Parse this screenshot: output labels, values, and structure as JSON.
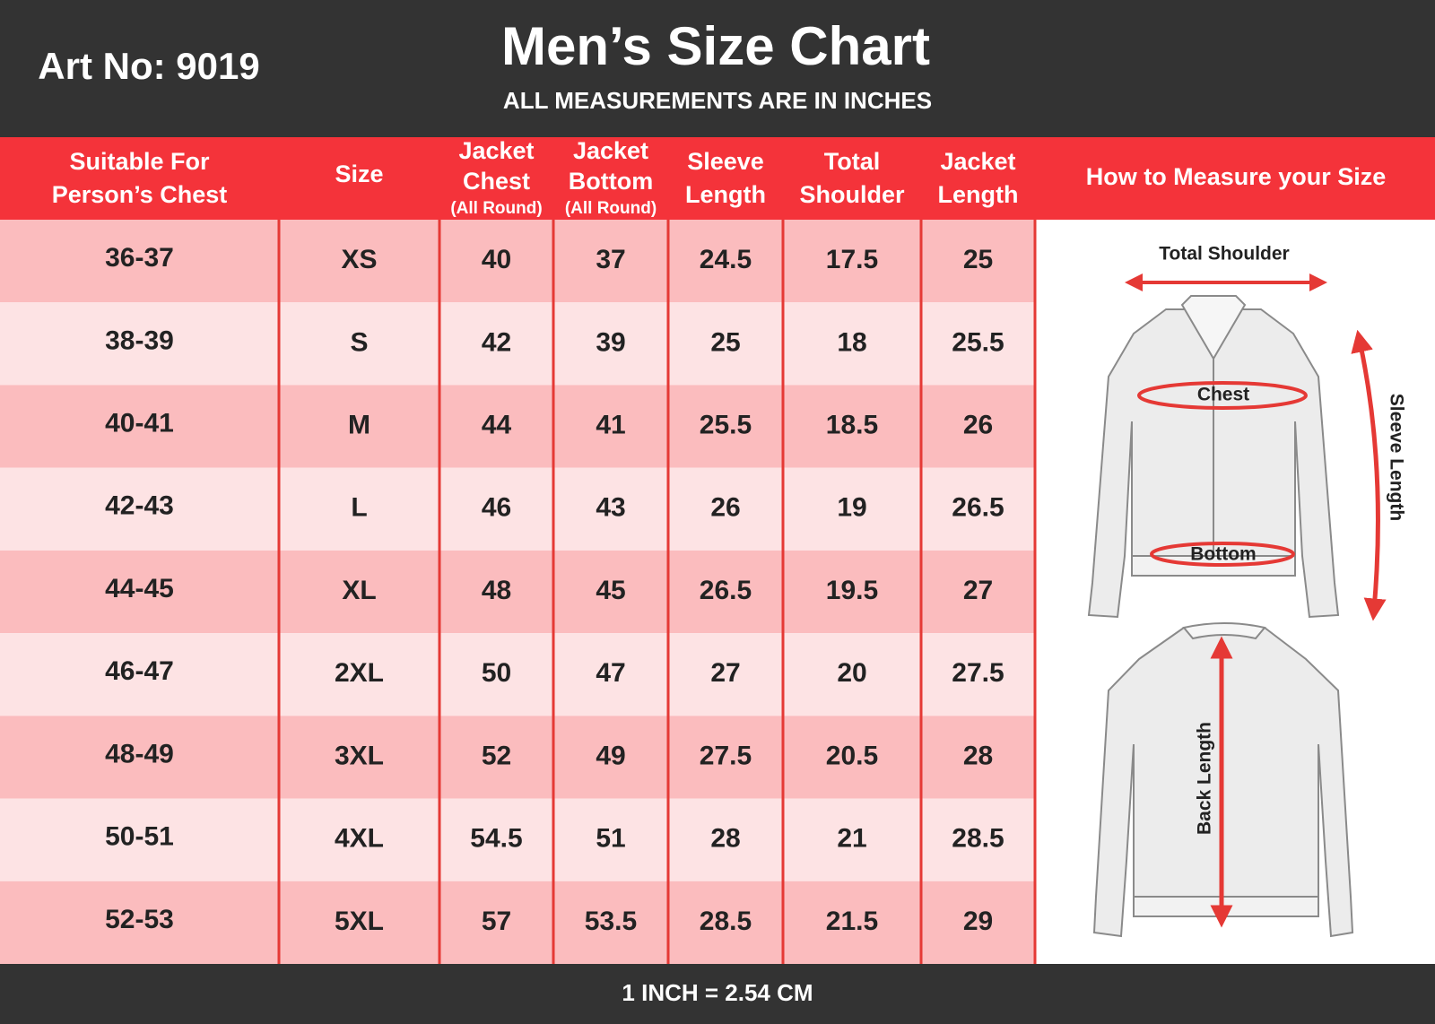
{
  "header": {
    "art_no": "Art No: 9019",
    "title": "Men’s Size Chart",
    "subtitle": "ALL MEASUREMENTS ARE IN INCHES"
  },
  "table": {
    "columns": [
      {
        "lines": [
          "Suitable For",
          "Person’s Chest"
        ]
      },
      {
        "lines": [
          "Size"
        ]
      },
      {
        "lines": [
          "Jacket",
          "Chest"
        ],
        "note": "(All Round)"
      },
      {
        "lines": [
          "Jacket",
          "Bottom"
        ],
        "note": "(All Round)"
      },
      {
        "lines": [
          "Sleeve",
          "Length"
        ]
      },
      {
        "lines": [
          "Total",
          "Shoulder"
        ]
      },
      {
        "lines": [
          "Jacket",
          "Length"
        ]
      }
    ],
    "rows": [
      [
        "36-37",
        "XS",
        40,
        37,
        24.5,
        17.5,
        25
      ],
      [
        "38-39",
        "S",
        42,
        39,
        25,
        18,
        25.5
      ],
      [
        "40-41",
        "M",
        44,
        41,
        25.5,
        18.5,
        26
      ],
      [
        "42-43",
        "L",
        46,
        43,
        26,
        19,
        26.5
      ],
      [
        "44-45",
        "XL",
        48,
        45,
        26.5,
        19.5,
        27
      ],
      [
        "46-47",
        "2XL",
        50,
        47,
        27,
        20,
        27.5
      ],
      [
        "48-49",
        "3XL",
        52,
        49,
        27.5,
        20.5,
        28
      ],
      [
        "50-51",
        "4XL",
        54.5,
        51,
        28,
        21,
        28.5
      ],
      [
        "52-53",
        "5XL",
        57,
        53.5,
        28.5,
        21.5,
        29
      ]
    ]
  },
  "guide": {
    "title": "How to Measure your Size",
    "labels": {
      "total_shoulder": "Total Shoulder",
      "chest": "Chest",
      "bottom": "Bottom",
      "sleeve_length": "Sleeve Length",
      "back_length": "Back Length"
    }
  },
  "footer": "1 INCH = 2.54 CM"
}
